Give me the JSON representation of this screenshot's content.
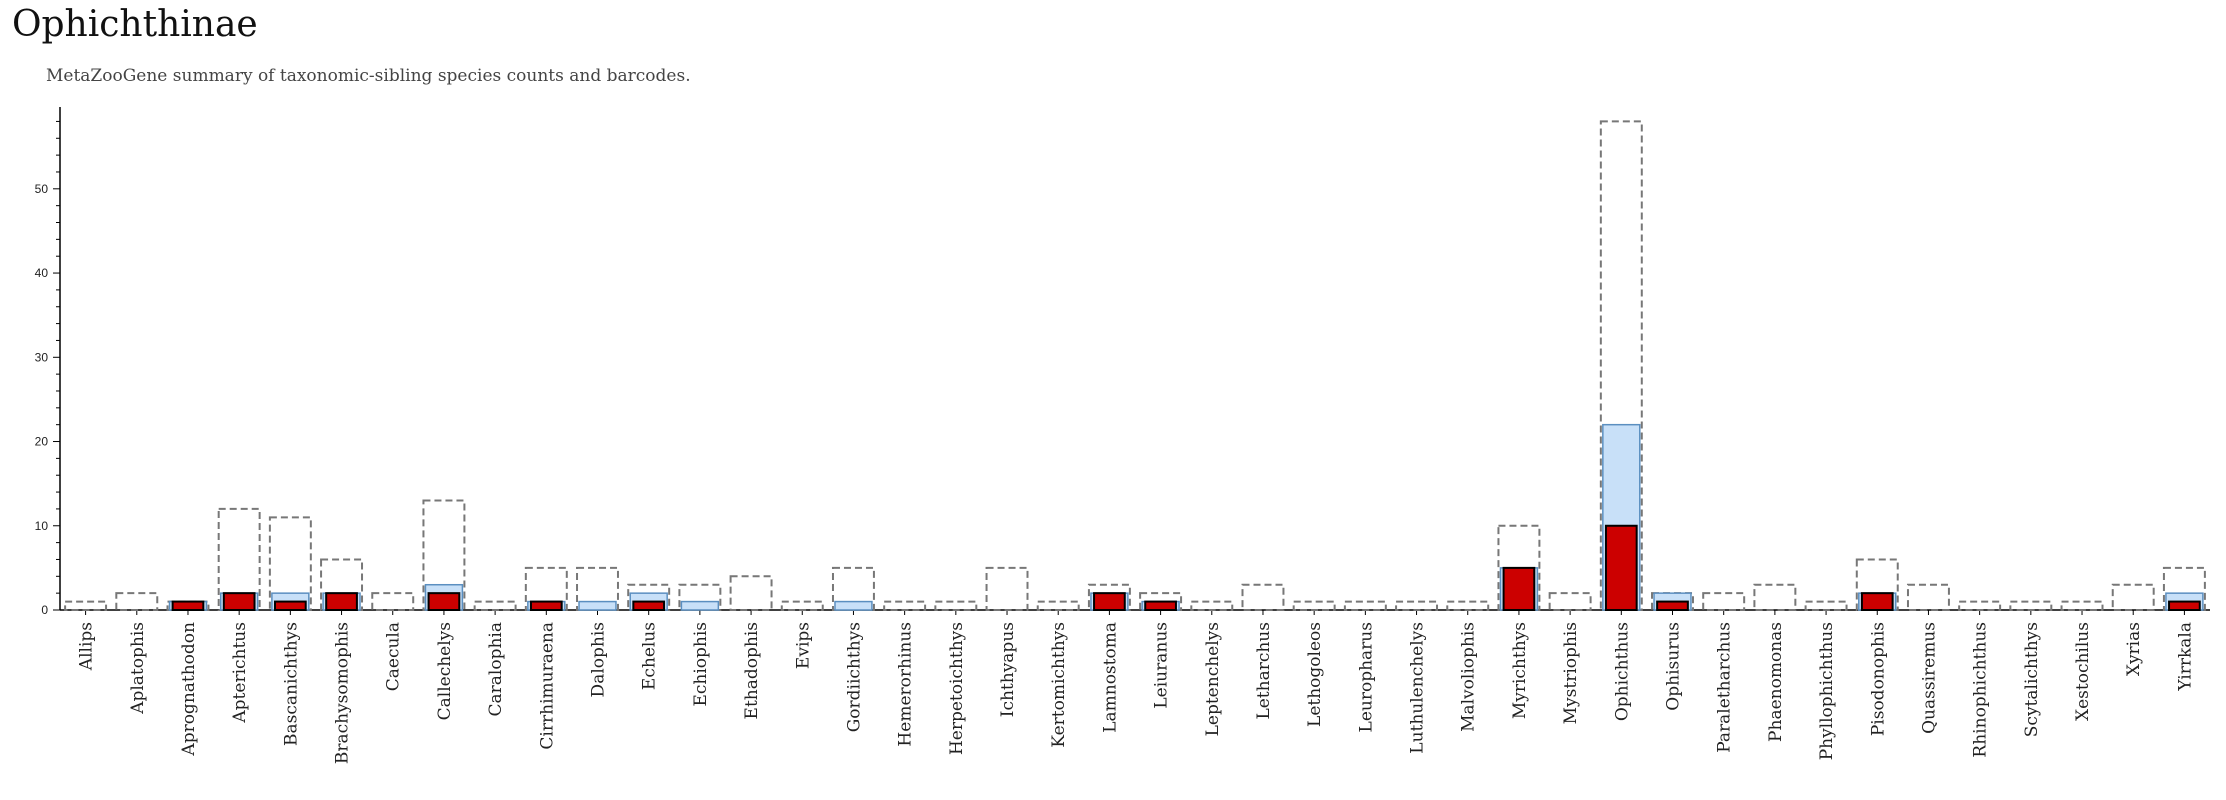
{
  "title": "Ophichthinae",
  "subtitle": "MetaZooGene summary of taxonomic-sibling species counts and barcodes.",
  "chart_data": {
    "type": "bar",
    "ylim": [
      0,
      59
    ],
    "yticks": [
      10,
      20,
      30,
      40,
      50
    ],
    "grid": false,
    "colors": {
      "species_total": "#777777",
      "species_barcoded": "#c8e0f8",
      "species_barcoded_border": "#5b8fc0",
      "barcodes": "#cc0000"
    },
    "categories": [
      "Allips",
      "Aplatophis",
      "Aprognathodon",
      "Apterichtus",
      "Bascanichthys",
      "Brachysomophis",
      "Caecula",
      "Callechelys",
      "Caralophia",
      "Cirrhimuraena",
      "Dalophis",
      "Echelus",
      "Echiophis",
      "Ethadophis",
      "Evips",
      "Gordiichthys",
      "Hemerorhinus",
      "Herpetoichthys",
      "Ichthyapus",
      "Kertomichthys",
      "Lamnostoma",
      "Leiuranus",
      "Leptenchelys",
      "Letharchus",
      "Lethogoleos",
      "Leuropharus",
      "Luthulenchelys",
      "Malvoliophis",
      "Myrichthys",
      "Mystriophis",
      "Ophichthus",
      "Ophisurus",
      "Paraletharchus",
      "Phaenomonas",
      "Phyllophichthus",
      "Pisodonophis",
      "Quassiremus",
      "Rhinophichthus",
      "Scytalichthys",
      "Xestochilus",
      "Xyrias",
      "Yirrkala"
    ],
    "series": [
      {
        "values": [
          1,
          2,
          1,
          12,
          11,
          6,
          2,
          13,
          1,
          5,
          5,
          3,
          3,
          4,
          1,
          5,
          1,
          1,
          5,
          1,
          3,
          2,
          1,
          3,
          1,
          1,
          1,
          1,
          10,
          2,
          58,
          2,
          2,
          3,
          1,
          6,
          3,
          1,
          1,
          1,
          3,
          5
        ]
      },
      {
        "values": [
          0,
          0,
          1,
          2,
          2,
          2,
          0,
          3,
          0,
          1,
          1,
          2,
          1,
          0,
          0,
          1,
          0,
          0,
          0,
          0,
          2,
          1,
          0,
          0,
          0,
          0,
          0,
          0,
          5,
          0,
          22,
          2,
          0,
          0,
          0,
          2,
          0,
          0,
          0,
          0,
          0,
          2
        ]
      },
      {
        "values": [
          0,
          0,
          1,
          2,
          1,
          2,
          0,
          2,
          0,
          1,
          0,
          1,
          0,
          0,
          0,
          0,
          0,
          0,
          0,
          0,
          2,
          1,
          0,
          0,
          0,
          0,
          0,
          0,
          5,
          0,
          10,
          1,
          0,
          0,
          0,
          2,
          0,
          0,
          0,
          0,
          0,
          1
        ]
      }
    ]
  }
}
